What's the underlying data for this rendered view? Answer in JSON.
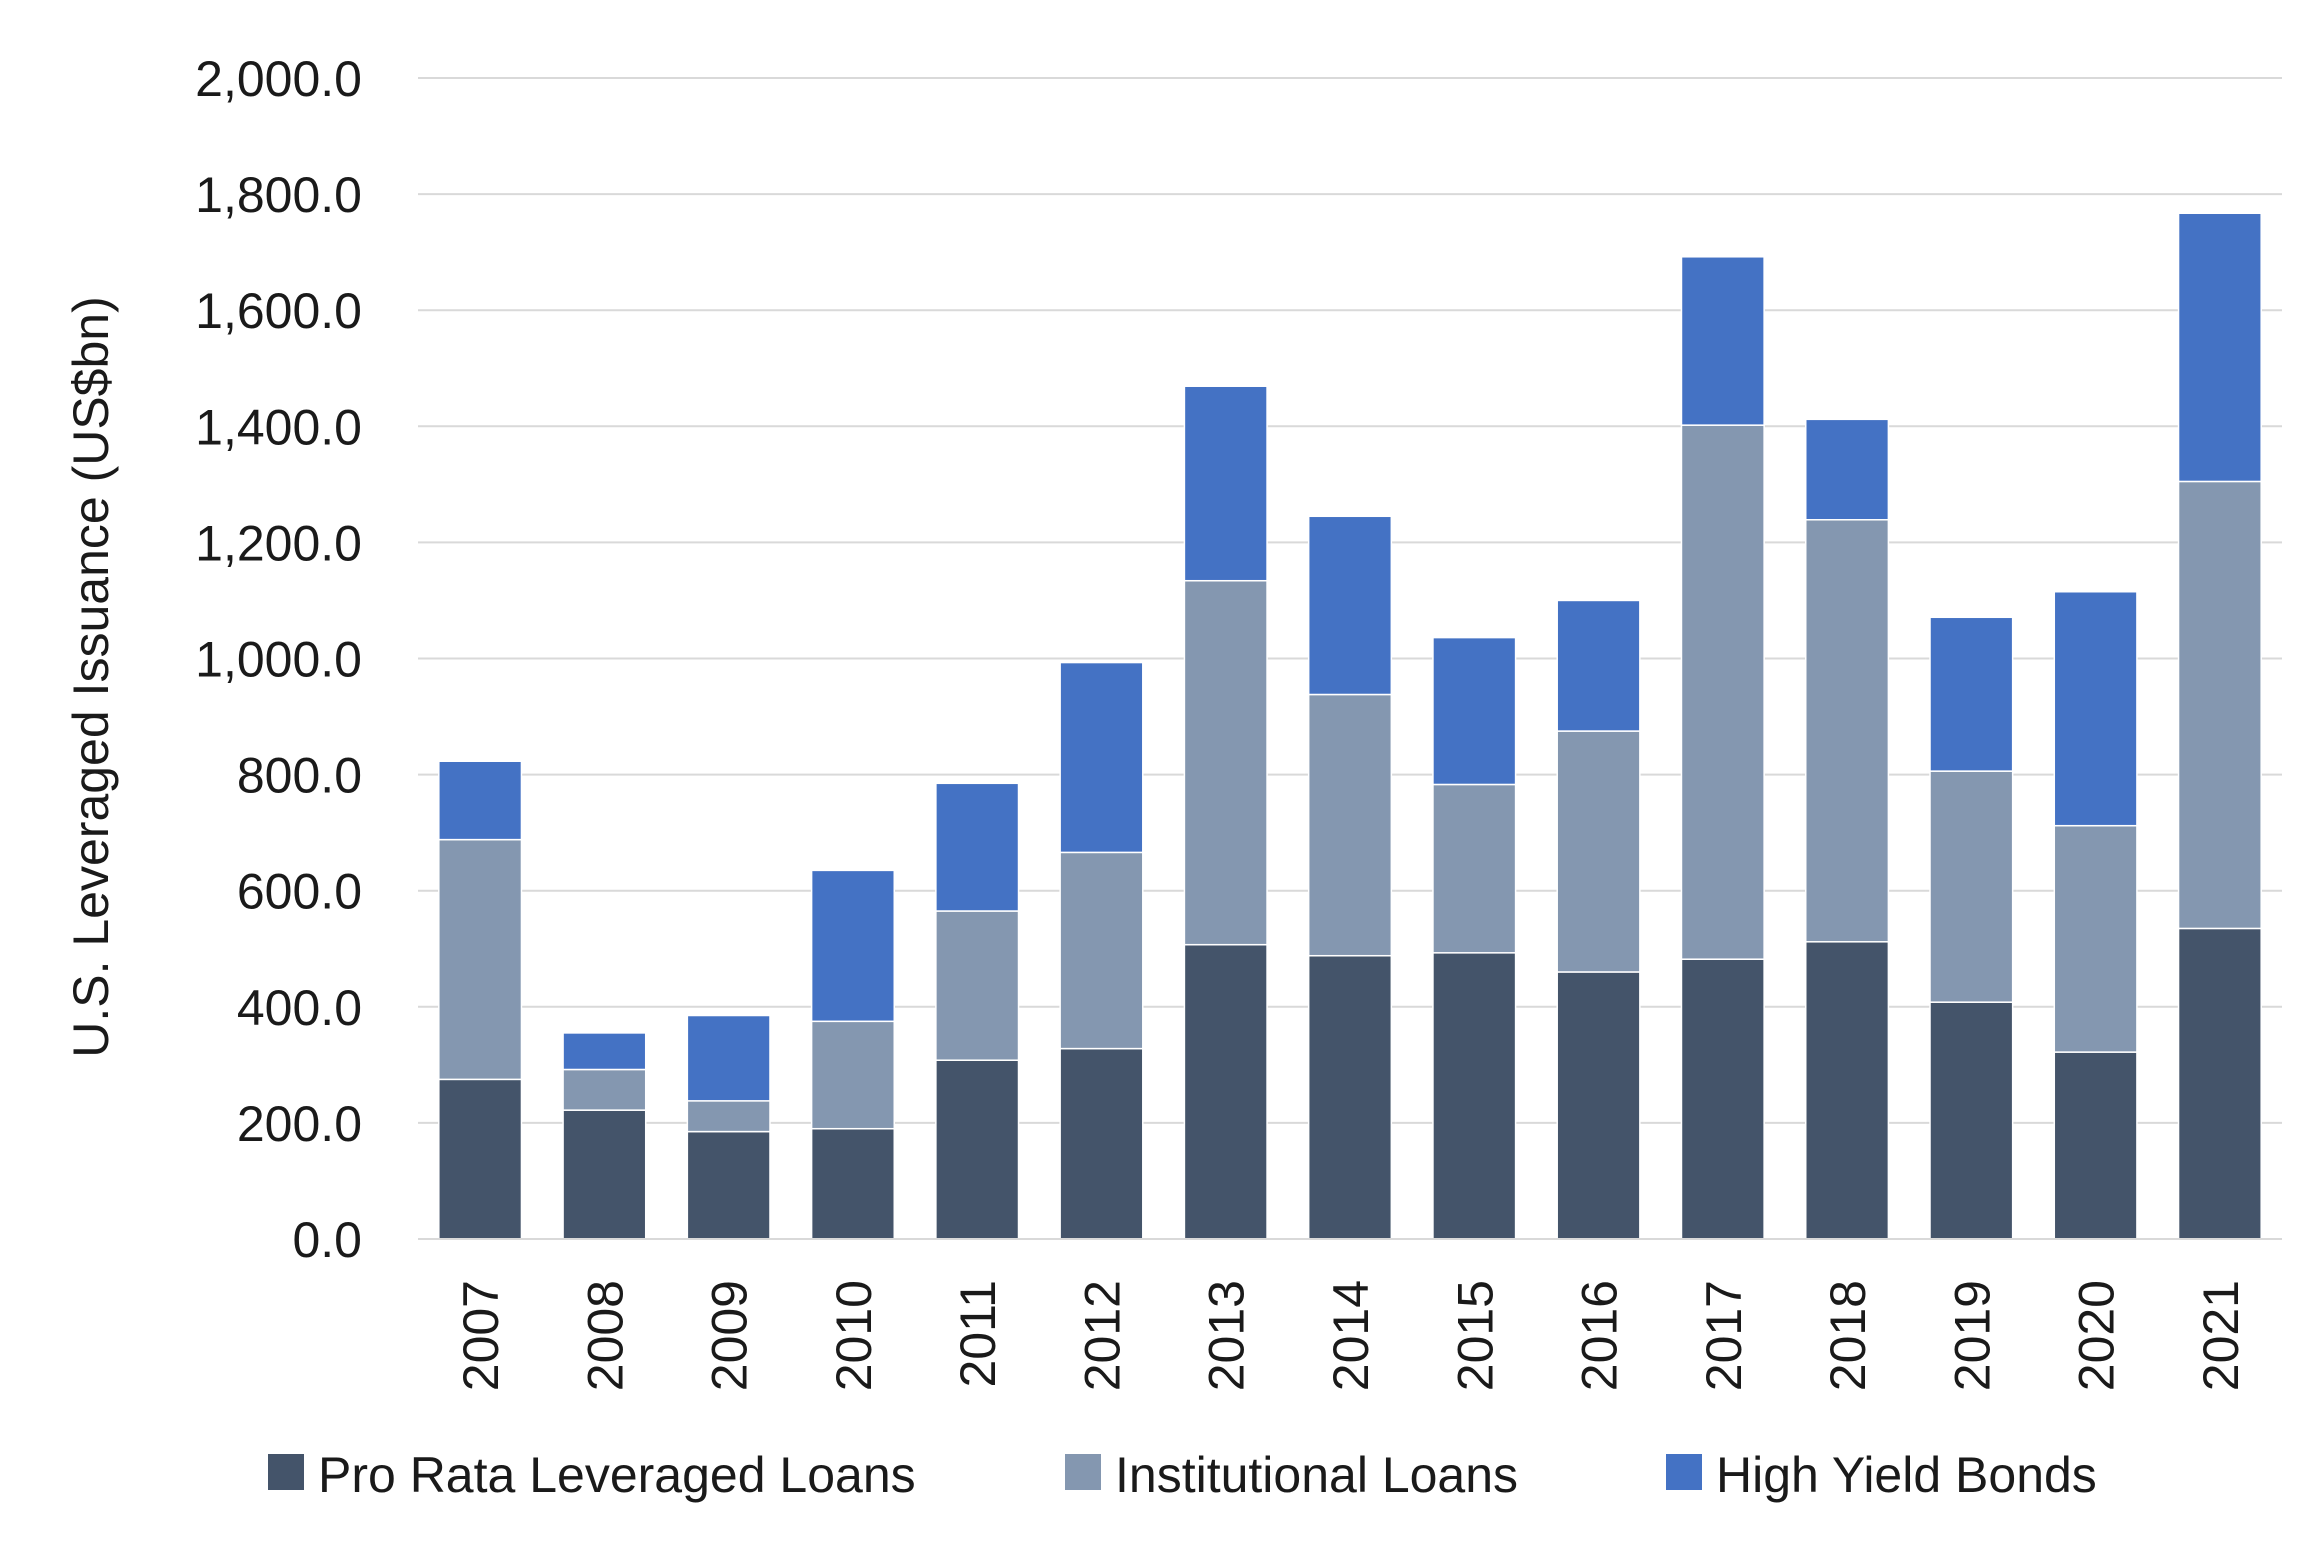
{
  "chart_data": {
    "type": "bar",
    "stacked": true,
    "categories": [
      "2007",
      "2008",
      "2009",
      "2010",
      "2011",
      "2012",
      "2013",
      "2014",
      "2015",
      "2016",
      "2017",
      "2018",
      "2019",
      "2020",
      "2021"
    ],
    "series": [
      {
        "name": "Pro Rata Leveraged Loans",
        "color": "#44546a",
        "values": [
          275,
          222,
          185,
          190,
          308,
          328,
          507,
          488,
          493,
          460,
          482,
          512,
          408,
          322,
          535
        ]
      },
      {
        "name": "Institutional Loans",
        "color": "#8497b0",
        "values": [
          413,
          70,
          53,
          185,
          257,
          338,
          627,
          450,
          290,
          415,
          920,
          727,
          398,
          390,
          770
        ]
      },
      {
        "name": "High Yield Bonds",
        "color": "#4472c4",
        "values": [
          135,
          63,
          147,
          260,
          220,
          327,
          335,
          307,
          253,
          225,
          290,
          173,
          265,
          403,
          462
        ]
      }
    ],
    "ylabel": "U.S. Leveraged Issuance (US$bn)",
    "ylim": [
      0,
      2000
    ],
    "yticks": [
      "0.0",
      "200.0",
      "400.0",
      "600.0",
      "800.0",
      "1,000.0",
      "1,200.0",
      "1,400.0",
      "1,600.0",
      "1,800.0",
      "2,000.0"
    ],
    "grid": true,
    "legend_position": "bottom"
  }
}
